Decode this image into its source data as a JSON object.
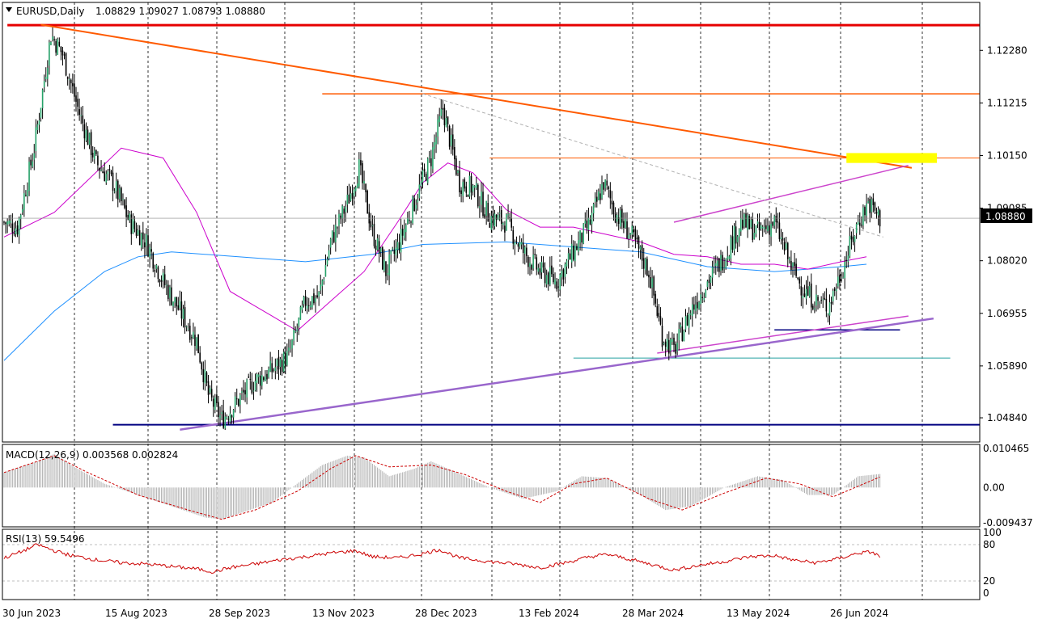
{
  "header": {
    "symbol_label": "EURUSD,Daily",
    "ohlc": "1.08829 1.09027 1.08793 1.08880"
  },
  "colors": {
    "bull": "#26a269",
    "bear": "#000000",
    "ma_blue": "#1e90ff",
    "ma_magenta": "#cc00cc",
    "resistance_red": "#e60000",
    "trend_orange": "#ff5a00",
    "support_purple": "#9966cc",
    "support_navy": "#000080",
    "highlight_yellow": "#ffff00",
    "macd_hist": "#b0b0b0",
    "macd_signal": "#cc0000",
    "rsi_line": "#cc0000"
  },
  "chart_data": {
    "type": "candlestick",
    "price_axis": {
      "ticks": [
        "1.12280",
        "1.11215",
        "1.10150",
        "1.09085",
        "1.08020",
        "1.06955",
        "1.05890",
        "1.04840"
      ],
      "current_price": "1.08880",
      "ylim": [
        1.0435,
        1.1325
      ]
    },
    "x_ticks": [
      "30 Jun 2023",
      "15 Aug 2023",
      "28 Sep 2023",
      "13 Nov 2023",
      "28 Dec 2023",
      "13 Feb 2024",
      "28 Mar 2024",
      "13 May 2024",
      "26 Jun 2024"
    ],
    "price_path": [
      [
        0,
        1.088
      ],
      [
        8,
        1.087
      ],
      [
        18,
        1.103
      ],
      [
        28,
        1.126
      ],
      [
        35,
        1.122
      ],
      [
        45,
        1.11
      ],
      [
        55,
        1.1
      ],
      [
        65,
        1.096
      ],
      [
        75,
        1.088
      ],
      [
        85,
        1.084
      ],
      [
        95,
        1.076
      ],
      [
        105,
        1.07
      ],
      [
        115,
        1.064
      ],
      [
        122,
        1.053
      ],
      [
        130,
        1.048
      ],
      [
        140,
        1.052
      ],
      [
        150,
        1.056
      ],
      [
        160,
        1.058
      ],
      [
        170,
        1.061
      ],
      [
        180,
        1.072
      ],
      [
        188,
        1.073
      ],
      [
        195,
        1.084
      ],
      [
        205,
        1.092
      ],
      [
        212,
        1.099
      ],
      [
        220,
        1.086
      ],
      [
        228,
        1.078
      ],
      [
        235,
        1.083
      ],
      [
        245,
        1.092
      ],
      [
        255,
        1.101
      ],
      [
        262,
        1.111
      ],
      [
        272,
        1.096
      ],
      [
        280,
        1.095
      ],
      [
        290,
        1.089
      ],
      [
        300,
        1.088
      ],
      [
        310,
        1.082
      ],
      [
        320,
        1.078
      ],
      [
        330,
        1.076
      ],
      [
        340,
        1.082
      ],
      [
        350,
        1.088
      ],
      [
        358,
        1.096
      ],
      [
        365,
        1.09
      ],
      [
        375,
        1.085
      ],
      [
        385,
        1.078
      ],
      [
        393,
        1.065
      ],
      [
        400,
        1.062
      ],
      [
        410,
        1.07
      ],
      [
        420,
        1.076
      ],
      [
        430,
        1.081
      ],
      [
        440,
        1.088
      ],
      [
        450,
        1.086
      ],
      [
        460,
        1.088
      ],
      [
        470,
        1.079
      ],
      [
        478,
        1.074
      ],
      [
        485,
        1.072
      ],
      [
        492,
        1.071
      ],
      [
        500,
        1.078
      ],
      [
        510,
        1.088
      ],
      [
        516,
        1.092
      ],
      [
        523,
        1.0888
      ]
    ],
    "overlays": {
      "moving_average_50": [
        [
          0,
          1.085
        ],
        [
          30,
          1.09
        ],
        [
          70,
          1.103
        ],
        [
          95,
          1.101
        ],
        [
          115,
          1.09
        ],
        [
          135,
          1.074
        ],
        [
          160,
          1.069
        ],
        [
          175,
          1.066
        ],
        [
          195,
          1.072
        ],
        [
          215,
          1.078
        ],
        [
          235,
          1.088
        ],
        [
          250,
          1.096
        ],
        [
          265,
          1.1
        ],
        [
          280,
          1.098
        ],
        [
          300,
          1.0905
        ],
        [
          320,
          1.087
        ],
        [
          340,
          1.087
        ],
        [
          360,
          1.0855
        ],
        [
          380,
          1.084
        ],
        [
          400,
          1.0815
        ],
        [
          420,
          1.081
        ],
        [
          440,
          1.0795
        ],
        [
          460,
          1.0795
        ],
        [
          480,
          1.0785
        ],
        [
          500,
          1.08
        ],
        [
          515,
          1.081
        ]
      ],
      "moving_average_200": [
        [
          0,
          1.06
        ],
        [
          30,
          1.07
        ],
        [
          60,
          1.078
        ],
        [
          80,
          1.081
        ],
        [
          100,
          1.082
        ],
        [
          140,
          1.081
        ],
        [
          180,
          1.08
        ],
        [
          220,
          1.0815
        ],
        [
          250,
          1.0835
        ],
        [
          300,
          1.084
        ],
        [
          340,
          1.083
        ],
        [
          380,
          1.082
        ],
        [
          420,
          1.079
        ],
        [
          460,
          1.078
        ],
        [
          500,
          1.079
        ],
        [
          515,
          1.0795
        ]
      ]
    },
    "macd": {
      "label": "MACD(12,26,9) 0.003568 0.002824",
      "ticks": [
        "0.010465",
        "0.00",
        "-0.009437"
      ],
      "ylim": [
        -0.0105,
        0.0115
      ],
      "histogram": [
        [
          0,
          0.004
        ],
        [
          20,
          0.007
        ],
        [
          30,
          0.009
        ],
        [
          40,
          0.006
        ],
        [
          60,
          0.001
        ],
        [
          80,
          -0.002
        ],
        [
          100,
          -0.005
        ],
        [
          120,
          -0.008
        ],
        [
          130,
          -0.0085
        ],
        [
          140,
          -0.007
        ],
        [
          160,
          -0.004
        ],
        [
          175,
          0.001
        ],
        [
          190,
          0.006
        ],
        [
          205,
          0.0085
        ],
        [
          215,
          0.008
        ],
        [
          230,
          0.003
        ],
        [
          245,
          0.005
        ],
        [
          255,
          0.007
        ],
        [
          270,
          0.004
        ],
        [
          290,
          0.0
        ],
        [
          310,
          -0.003
        ],
        [
          330,
          -0.001
        ],
        [
          345,
          0.003
        ],
        [
          360,
          0.0025
        ],
        [
          380,
          -0.002
        ],
        [
          395,
          -0.006
        ],
        [
          410,
          -0.005
        ],
        [
          430,
          0.0
        ],
        [
          450,
          0.003
        ],
        [
          465,
          0.002
        ],
        [
          480,
          -0.002
        ],
        [
          495,
          -0.002
        ],
        [
          510,
          0.003
        ],
        [
          523,
          0.0036
        ]
      ],
      "signal": [
        [
          0,
          0.004
        ],
        [
          30,
          0.0085
        ],
        [
          50,
          0.004
        ],
        [
          80,
          -0.002
        ],
        [
          110,
          -0.006
        ],
        [
          130,
          -0.0085
        ],
        [
          150,
          -0.006
        ],
        [
          175,
          -0.001
        ],
        [
          195,
          0.005
        ],
        [
          210,
          0.0085
        ],
        [
          230,
          0.0055
        ],
        [
          255,
          0.006
        ],
        [
          275,
          0.0035
        ],
        [
          300,
          -0.001
        ],
        [
          320,
          -0.004
        ],
        [
          340,
          0.001
        ],
        [
          360,
          0.0025
        ],
        [
          385,
          -0.003
        ],
        [
          405,
          -0.006
        ],
        [
          430,
          -0.0015
        ],
        [
          455,
          0.0025
        ],
        [
          475,
          0.001
        ],
        [
          495,
          -0.0025
        ],
        [
          523,
          0.0028
        ]
      ]
    },
    "rsi": {
      "label": "RSI(13) 59.5496",
      "ticks": [
        "100",
        "80",
        "20",
        "0"
      ],
      "ylim": [
        0,
        100
      ],
      "values": [
        [
          0,
          58
        ],
        [
          10,
          68
        ],
        [
          20,
          80
        ],
        [
          30,
          70
        ],
        [
          40,
          62
        ],
        [
          55,
          55
        ],
        [
          70,
          50
        ],
        [
          85,
          48
        ],
        [
          100,
          44
        ],
        [
          115,
          40
        ],
        [
          125,
          35
        ],
        [
          135,
          42
        ],
        [
          150,
          48
        ],
        [
          165,
          55
        ],
        [
          180,
          60
        ],
        [
          195,
          66
        ],
        [
          210,
          70
        ],
        [
          220,
          60
        ],
        [
          235,
          58
        ],
        [
          250,
          65
        ],
        [
          260,
          72
        ],
        [
          272,
          58
        ],
        [
          290,
          52
        ],
        [
          305,
          48
        ],
        [
          320,
          42
        ],
        [
          335,
          50
        ],
        [
          350,
          60
        ],
        [
          360,
          64
        ],
        [
          375,
          55
        ],
        [
          390,
          45
        ],
        [
          400,
          38
        ],
        [
          415,
          46
        ],
        [
          430,
          52
        ],
        [
          445,
          60
        ],
        [
          460,
          62
        ],
        [
          472,
          54
        ],
        [
          485,
          50
        ],
        [
          500,
          58
        ],
        [
          510,
          66
        ],
        [
          518,
          68
        ],
        [
          523,
          60
        ]
      ]
    },
    "drawn_lines": [
      {
        "kind": "horizontal",
        "price": 1.1279,
        "from": 2,
        "to": 600,
        "color": "resistance_red",
        "width": 3
      },
      {
        "kind": "horizontal",
        "price": 1.114,
        "from": 190,
        "to": 600,
        "color": "trend_orange",
        "width": 1.5
      },
      {
        "kind": "horizontal",
        "price": 1.101,
        "from": 290,
        "to": 600,
        "color": "trend_orange",
        "width": 1
      },
      {
        "kind": "horizontal",
        "price": 1.047,
        "from": 65,
        "to": 600,
        "color": "support_navy",
        "width": 2
      },
      {
        "kind": "horizontal",
        "price": 1.0605,
        "from": 340,
        "to": 565,
        "color": "#26a0a0",
        "width": 1
      },
      {
        "kind": "horizontal",
        "price": 1.0662,
        "from": 460,
        "to": 535,
        "color": "support_navy",
        "width": 1.5
      },
      {
        "kind": "trend",
        "from": [
          22,
          1.128
        ],
        "to": [
          542,
          1.099
        ],
        "color": "trend_orange",
        "width": 2
      },
      {
        "kind": "trend",
        "from": [
          105,
          1.046
        ],
        "to": [
          555,
          1.0685
        ],
        "color": "support_purple",
        "width": 2.5
      },
      {
        "kind": "trend",
        "from": [
          390,
          1.0615
        ],
        "to": [
          540,
          1.069
        ],
        "color": "#cc44cc",
        "width": 1.5
      },
      {
        "kind": "trend",
        "from": [
          400,
          1.088
        ],
        "to": [
          540,
          1.0995
        ],
        "color": "#cc44cc",
        "width": 1.5
      },
      {
        "kind": "trend",
        "from": [
          250,
          1.114
        ],
        "to": [
          525,
          1.085
        ],
        "color": "#b0b0b0",
        "width": 1,
        "dashed": true
      }
    ],
    "highlight_zone": {
      "from": 503,
      "to": 557,
      "price_top": 1.102,
      "price_bottom": 1.1
    }
  }
}
